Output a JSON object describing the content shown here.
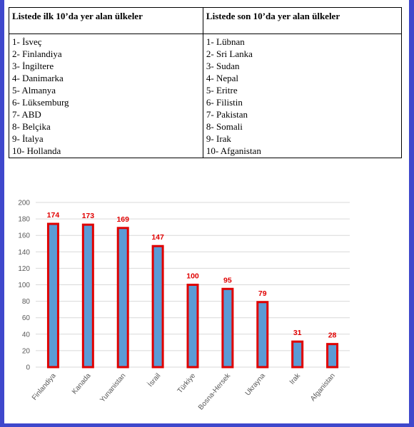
{
  "table": {
    "left_header": "Listede ilk 10’da yer alan ülkeler",
    "right_header": "Listede son 10’da yer alan ülkeler",
    "left_items": [
      "1- İsveç",
      "2- Finlandiya",
      "3- İngiltere",
      "4- Danimarka",
      "5- Almanya",
      "6- Lüksemburg",
      "7- ABD",
      "8- Belçika",
      "9- İtalya",
      "10- Hollanda"
    ],
    "right_items": [
      "1- Lübnan",
      "2- Sri Lanka",
      "3- Sudan",
      "4- Nepal",
      "5- Eritre",
      "6- Filistin",
      "7- Pakistan",
      "8- Somali",
      "9- Irak",
      "10- Afganistan"
    ]
  },
  "colors": {
    "page_border": "#3f48cc",
    "bar_fill": "#5b9bd5",
    "bar_outline": "#e00000",
    "data_label": "#e00000",
    "gridline": "#d9d9d9",
    "tick_text": "#595959"
  },
  "chart_data": {
    "type": "bar",
    "categories": [
      "Finlandiya",
      "Kanada",
      "Yunanistan",
      "İsrail",
      "Türkiye",
      "Bosna-Hersek",
      "Ukrayna",
      "Irak",
      "Afganistan"
    ],
    "values": [
      174,
      173,
      169,
      147,
      100,
      95,
      79,
      31,
      28
    ],
    "ylim": [
      0,
      200
    ],
    "yticks": [
      0,
      20,
      40,
      60,
      80,
      100,
      120,
      140,
      160,
      180,
      200
    ],
    "grid": true,
    "data_labels": true,
    "title": "",
    "xlabel": "",
    "ylabel": ""
  }
}
